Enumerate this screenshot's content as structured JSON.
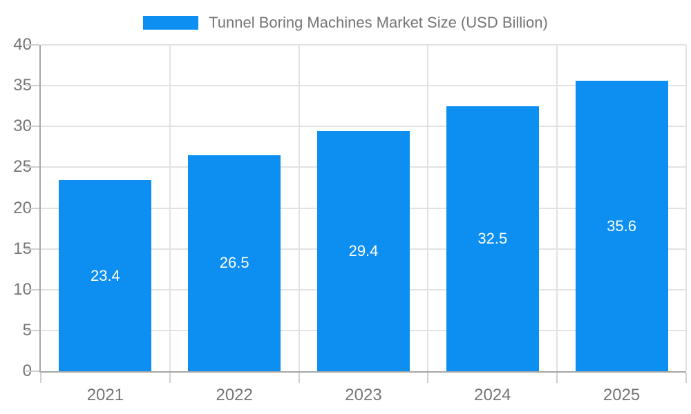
{
  "legend": {
    "label": "Tunnel Boring Machines Market Size (USD Billion)"
  },
  "colors": {
    "bar": "#0D8FF2",
    "grid": "#E2E2E2",
    "axis": "#A6A6A6",
    "tick": "#CFCFCF",
    "text": "#757575",
    "value_label": "#FFFFFF",
    "background": "#FFFFFF"
  },
  "chart_data": {
    "type": "bar",
    "title": "Tunnel Boring Machines Market Size (USD Billion)",
    "categories": [
      "2021",
      "2022",
      "2023",
      "2024",
      "2025"
    ],
    "values": [
      23.4,
      26.5,
      29.4,
      32.5,
      35.6
    ],
    "value_labels": [
      "23.4",
      "26.5",
      "29.4",
      "32.5",
      "35.6"
    ],
    "value_labels_position": "inside-center",
    "xlabel": "",
    "ylabel": "",
    "ylim": [
      0,
      40
    ],
    "yticks": [
      0,
      5,
      10,
      15,
      20,
      25,
      30,
      35,
      40
    ],
    "grid": true,
    "legend_position": "top"
  }
}
